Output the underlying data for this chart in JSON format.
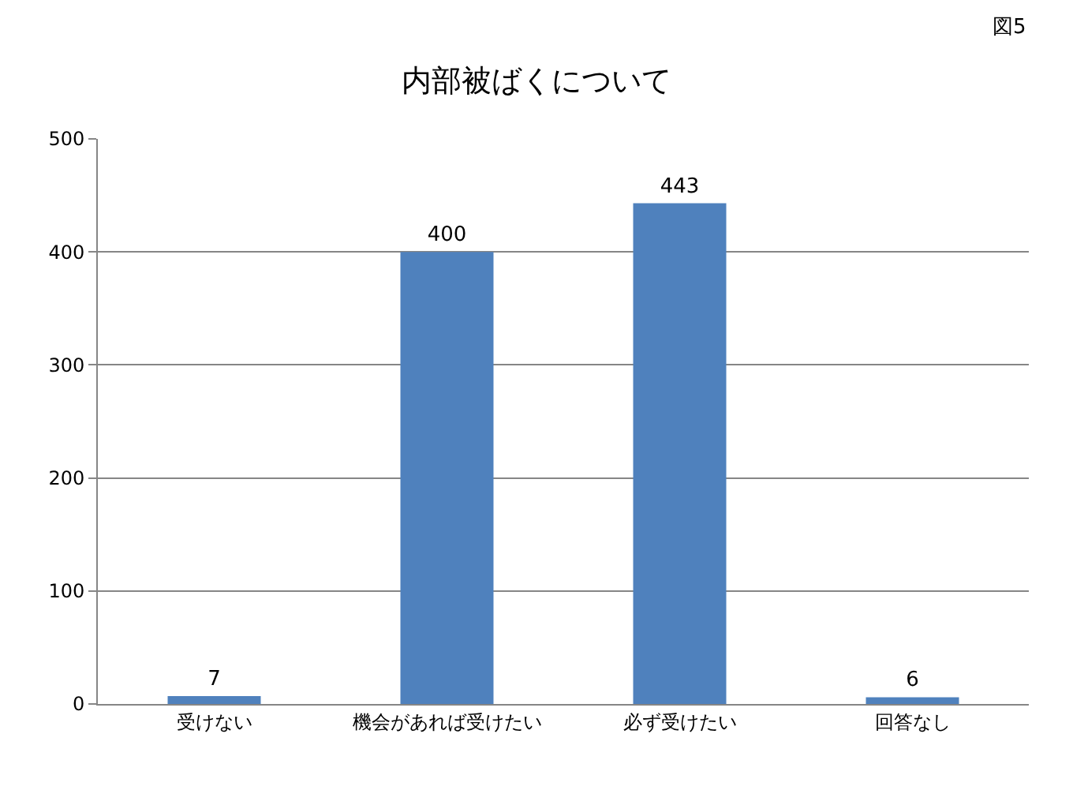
{
  "chart_data": {
    "type": "bar",
    "title": "内部被ばくについて",
    "annotations": [
      "図5"
    ],
    "categories": [
      "受けない",
      "機会があれば受けたい",
      "必ず受けたい",
      "回答なし"
    ],
    "values": [
      7,
      400,
      443,
      6
    ],
    "color": "#4f81bd",
    "data_labels": true,
    "ylim": [
      0,
      500
    ],
    "yticks": [
      0,
      100,
      200,
      300,
      400,
      500
    ],
    "grid": "y",
    "legend": false
  }
}
